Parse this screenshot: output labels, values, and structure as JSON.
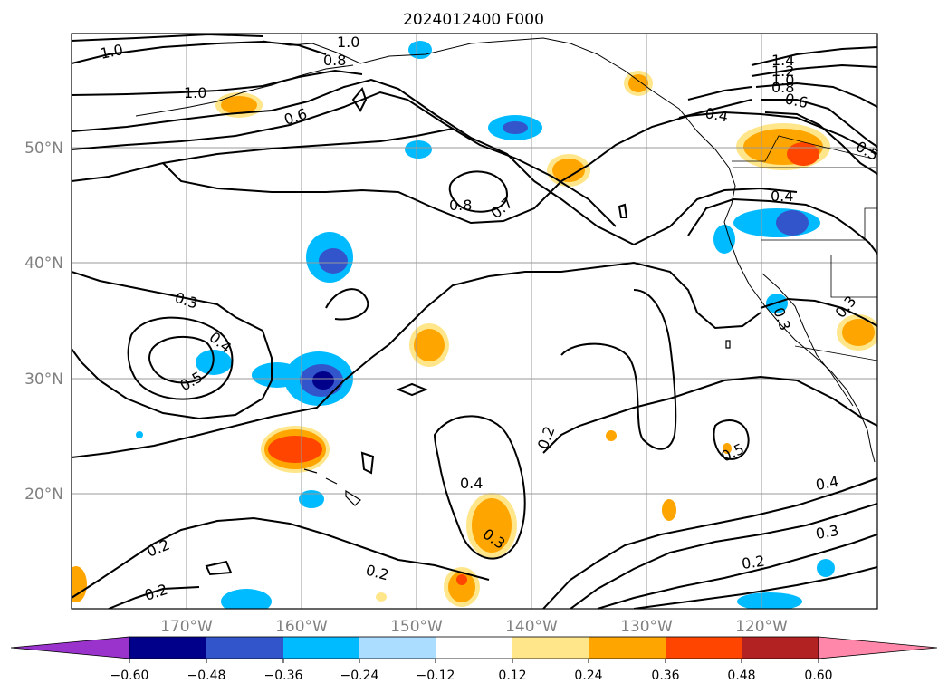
{
  "title": "2024012400 F000",
  "map": {
    "lon_ticks": [
      "170°W",
      "160°W",
      "150°W",
      "140°W",
      "130°W",
      "120°W"
    ],
    "lat_ticks": [
      "50°N",
      "40°N",
      "30°N",
      "20°N"
    ],
    "grid": true,
    "extent": {
      "lon": [
        -180,
        -110
      ],
      "lat": [
        10,
        60
      ]
    }
  },
  "contour_labels": [
    "1.0",
    "1.0",
    "1.0",
    "0.8",
    "0.6",
    "1.4",
    "1.2",
    "1.0",
    "0.8",
    "0.6",
    "0.5",
    "0.4",
    "0.4",
    "0.8",
    "0.7",
    "0.3",
    "0.4",
    "0.5",
    "0.3",
    "0.3",
    "0.2",
    "0.4",
    "0.3",
    "0.5",
    "0.4",
    "0.3",
    "0.2",
    "0.2",
    "0.2",
    "0.2"
  ],
  "colorbar": {
    "ticks": [
      "−0.60",
      "−0.48",
      "−0.36",
      "−0.24",
      "−0.12",
      "0.12",
      "0.24",
      "0.36",
      "0.48",
      "0.60"
    ],
    "colors": [
      "#9933cc",
      "#00008b",
      "#3355cc",
      "#00bbff",
      "#aaddff",
      "#ffffff",
      "#ffe68a",
      "#ffa500",
      "#ff4500",
      "#b22222",
      "#ff88aa"
    ],
    "extend": "both"
  },
  "colors": {
    "grid": "#999999",
    "coast": "#000000",
    "contour": "#000000",
    "tick_text": "#808080"
  }
}
